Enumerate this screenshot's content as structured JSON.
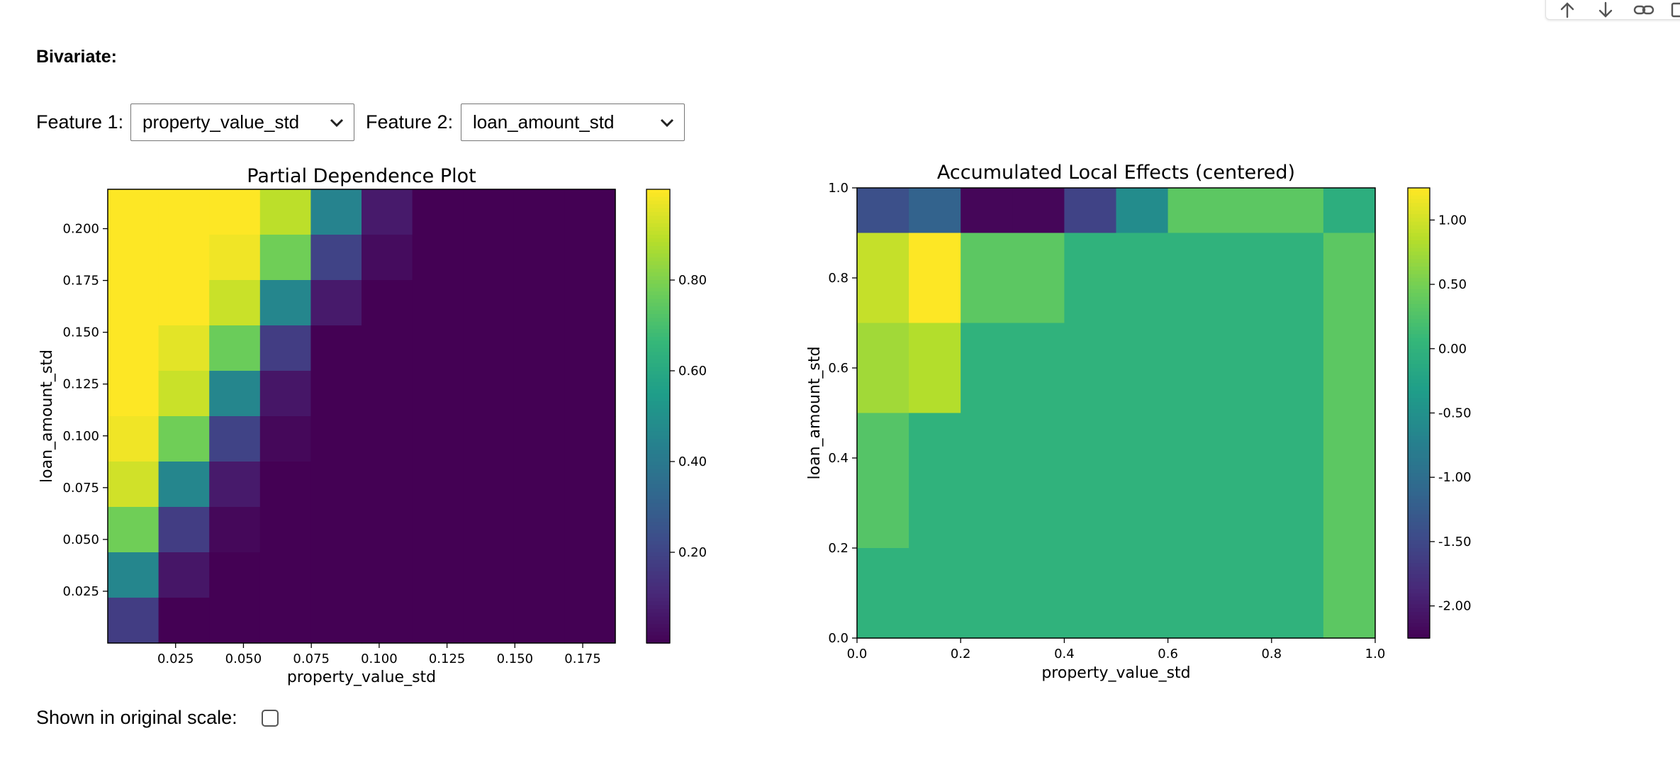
{
  "toolbar": {
    "icons": [
      "arrow-up-icon",
      "arrow-down-icon",
      "link-icon",
      "more-icon"
    ]
  },
  "section_title": "Bivariate:",
  "controls": {
    "feature1_label": "Feature 1:",
    "feature1_value": "property_value_std",
    "feature2_label": "Feature 2:",
    "feature2_value": "loan_amount_std",
    "original_scale_label": "Shown in original scale:",
    "original_scale_checked": false
  },
  "colors": {
    "viridis_low": "#440154",
    "viridis_mid": "#21918c",
    "viridis_high": "#fde725"
  },
  "chart_data": [
    {
      "type": "heatmap",
      "title": "Partial Dependence Plot",
      "xlabel": "property_value_std",
      "ylabel": "loan_amount_std",
      "xlim": [
        0.0,
        0.187
      ],
      "ylim": [
        0.0,
        0.219
      ],
      "x_bin_edges": [
        0.0,
        0.0187,
        0.0374,
        0.0561,
        0.0748,
        0.0935,
        0.1122,
        0.1309,
        0.1496,
        0.1683,
        0.187
      ],
      "y_bin_edges": [
        0.0,
        0.0219,
        0.0438,
        0.0657,
        0.0876,
        0.1095,
        0.1314,
        0.1533,
        0.1752,
        0.1971,
        0.219
      ],
      "xticks": [
        "0.025",
        "0.050",
        "0.075",
        "0.100",
        "0.125",
        "0.150",
        "0.175"
      ],
      "xtick_values": [
        0.025,
        0.05,
        0.075,
        0.1,
        0.125,
        0.15,
        0.175
      ],
      "yticks": [
        "0.025",
        "0.050",
        "0.075",
        "0.100",
        "0.125",
        "0.150",
        "0.175",
        "0.200"
      ],
      "ytick_values": [
        0.025,
        0.05,
        0.075,
        0.1,
        0.125,
        0.15,
        0.175,
        0.2
      ],
      "colorbar": {
        "min": 0.0,
        "max": 1.0,
        "ticks": [
          "0.20",
          "0.40",
          "0.60",
          "0.80"
        ],
        "tick_values": [
          0.2,
          0.4,
          0.6,
          0.8
        ]
      },
      "z_rows_top_to_bottom": [
        [
          1.0,
          1.0,
          1.0,
          0.9,
          0.45,
          0.07,
          0.0,
          0.0,
          0.0,
          0.0
        ],
        [
          1.0,
          1.0,
          0.98,
          0.78,
          0.2,
          0.03,
          0.0,
          0.0,
          0.0,
          0.0
        ],
        [
          1.0,
          1.0,
          0.92,
          0.46,
          0.07,
          0.0,
          0.0,
          0.0,
          0.0,
          0.0
        ],
        [
          1.0,
          0.96,
          0.77,
          0.18,
          0.0,
          0.0,
          0.0,
          0.0,
          0.0,
          0.0
        ],
        [
          1.0,
          0.92,
          0.46,
          0.06,
          0.0,
          0.0,
          0.0,
          0.0,
          0.0,
          0.0
        ],
        [
          0.98,
          0.78,
          0.2,
          0.02,
          0.0,
          0.0,
          0.0,
          0.0,
          0.0,
          0.0
        ],
        [
          0.93,
          0.46,
          0.07,
          0.0,
          0.0,
          0.0,
          0.0,
          0.0,
          0.0,
          0.0
        ],
        [
          0.78,
          0.18,
          0.02,
          0.0,
          0.0,
          0.0,
          0.0,
          0.0,
          0.0,
          0.0
        ],
        [
          0.46,
          0.06,
          0.0,
          0.0,
          0.0,
          0.0,
          0.0,
          0.0,
          0.0,
          0.0
        ],
        [
          0.18,
          0.0,
          0.0,
          0.0,
          0.0,
          0.0,
          0.0,
          0.0,
          0.0,
          0.0
        ]
      ]
    },
    {
      "type": "heatmap",
      "title": "Accumulated Local Effects (centered)",
      "xlabel": "property_value_std",
      "ylabel": "loan_amount_std",
      "xlim": [
        0.0,
        1.0
      ],
      "ylim": [
        0.0,
        1.0
      ],
      "x_bin_edges": [
        0.0,
        0.1,
        0.2,
        0.3,
        0.4,
        0.5,
        0.6,
        0.7,
        0.8,
        0.9,
        1.0
      ],
      "y_bin_edges": [
        0.0,
        0.2,
        0.5,
        0.7,
        0.9,
        1.0
      ],
      "xticks": [
        "0.0",
        "0.2",
        "0.4",
        "0.6",
        "0.8",
        "1.0"
      ],
      "xtick_values": [
        0.0,
        0.2,
        0.4,
        0.6,
        0.8,
        1.0
      ],
      "yticks": [
        "0.0",
        "0.2",
        "0.4",
        "0.6",
        "0.8",
        "1.0"
      ],
      "ytick_values": [
        0.0,
        0.2,
        0.4,
        0.6,
        0.8,
        1.0
      ],
      "colorbar": {
        "min": -2.25,
        "max": 1.25,
        "ticks": [
          "1.00",
          "0.50",
          "0.00",
          "-0.50",
          "-1.00",
          "-1.50",
          "-2.00"
        ],
        "tick_values": [
          1.0,
          0.5,
          0.0,
          -0.5,
          -1.0,
          -1.5,
          -2.0
        ]
      },
      "z_rows_top_to_bottom": [
        [
          -1.4,
          -1.15,
          -2.2,
          -2.2,
          -1.55,
          -0.55,
          0.35,
          0.35,
          0.35,
          -0.05
        ],
        [
          0.95,
          1.25,
          0.35,
          0.35,
          0.0,
          0.0,
          0.0,
          0.0,
          0.0,
          0.35
        ],
        [
          0.75,
          0.85,
          0.0,
          0.0,
          0.0,
          0.0,
          0.0,
          0.0,
          0.0,
          0.35
        ],
        [
          0.3,
          0.0,
          0.0,
          0.0,
          0.0,
          0.0,
          0.0,
          0.0,
          0.0,
          0.35
        ],
        [
          0.0,
          0.0,
          0.0,
          0.0,
          0.0,
          0.0,
          0.0,
          0.0,
          0.0,
          0.35
        ]
      ]
    }
  ]
}
